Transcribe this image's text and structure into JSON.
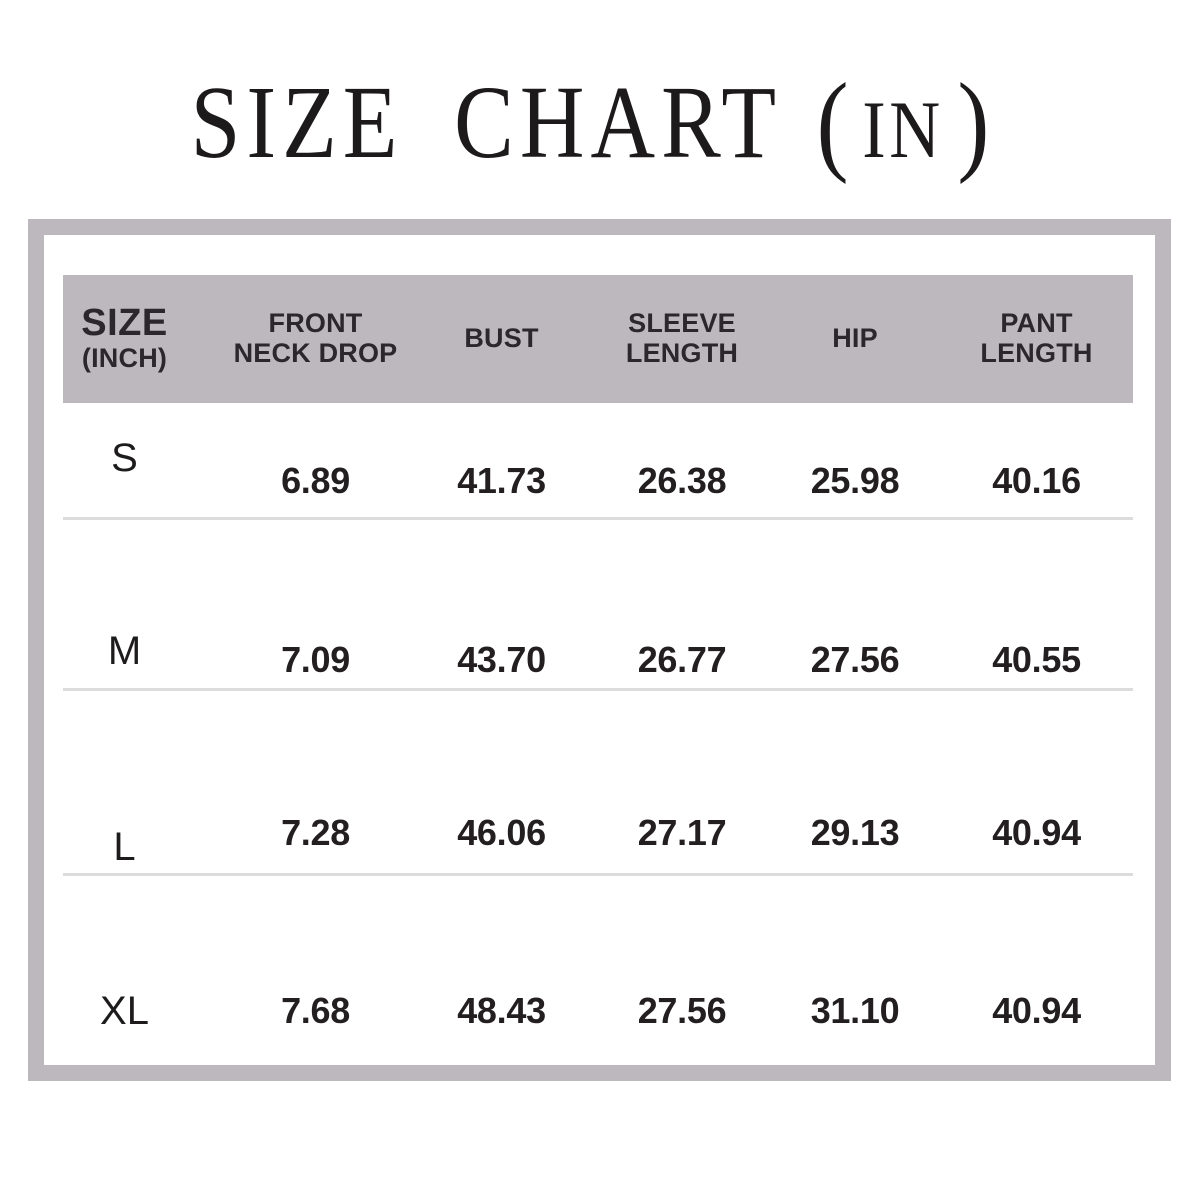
{
  "title": {
    "main": "SIZE CHART",
    "paren_open": "(",
    "unit": "IN",
    "paren_close": ")"
  },
  "colors": {
    "frame_border": "#bdb8be",
    "header_bg": "#bdb8be",
    "divider": "#dcdcdc",
    "text": "#231f20"
  },
  "table": {
    "header": {
      "size_label": "SIZE",
      "size_unit": "(INCH)",
      "cols": [
        {
          "line1": "FRONT",
          "line2": "NECK DROP"
        },
        {
          "line1": "BUST",
          "line2": ""
        },
        {
          "line1": "SLEEVE",
          "line2": "LENGTH"
        },
        {
          "line1": "HIP",
          "line2": ""
        },
        {
          "line1": "PANT",
          "line2": "LENGTH"
        }
      ]
    },
    "rows": [
      {
        "size": "S",
        "values": [
          "6.89",
          "41.73",
          "26.38",
          "25.98",
          "40.16"
        ]
      },
      {
        "size": "M",
        "values": [
          "7.09",
          "43.70",
          "26.77",
          "27.56",
          "40.55"
        ]
      },
      {
        "size": "L",
        "values": [
          "7.28",
          "46.06",
          "27.17",
          "29.13",
          "40.94"
        ]
      },
      {
        "size": "XL",
        "values": [
          "7.68",
          "48.43",
          "27.56",
          "31.10",
          "40.94"
        ]
      }
    ]
  },
  "chart_data": {
    "type": "table",
    "title": "SIZE CHART (IN)",
    "columns": [
      "SIZE (INCH)",
      "FRONT NECK DROP",
      "BUST",
      "SLEEVE LENGTH",
      "HIP",
      "PANT LENGTH"
    ],
    "rows": [
      [
        "S",
        6.89,
        41.73,
        26.38,
        25.98,
        40.16
      ],
      [
        "M",
        7.09,
        43.7,
        26.77,
        27.56,
        40.55
      ],
      [
        "L",
        7.28,
        46.06,
        27.17,
        29.13,
        40.94
      ],
      [
        "XL",
        7.68,
        48.43,
        27.56,
        31.1,
        40.94
      ]
    ]
  }
}
